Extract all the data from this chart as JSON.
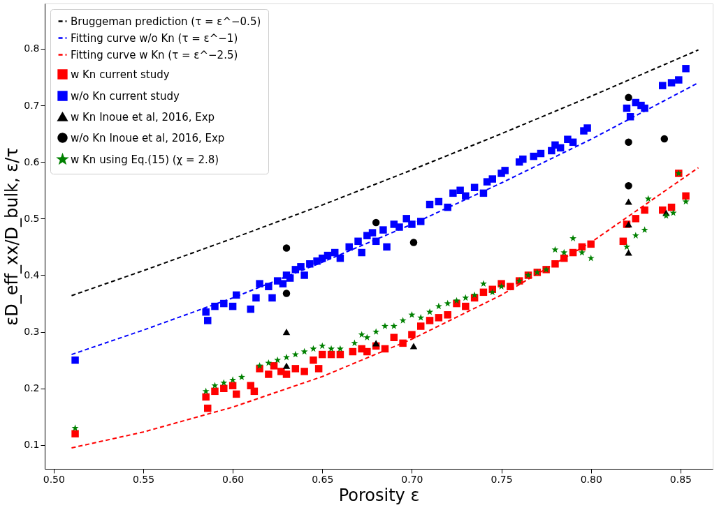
{
  "chart_data": {
    "type": "scatter",
    "xlabel": "Porosity ε",
    "ylabel": "εD_eff_xx/D_bulk,   ε/τ",
    "xlim": [
      0.495,
      0.868
    ],
    "ylim": [
      0.058,
      0.88
    ],
    "xticks": [
      {
        "value": 0.5,
        "label": "0.50"
      },
      0.55,
      {
        "value": 0.6,
        "label": "0.60"
      },
      0.65,
      {
        "value": 0.7,
        "label": "0.70"
      },
      0.75,
      {
        "value": 0.8,
        "label": "0.80"
      },
      0.85
    ],
    "yticks": [
      0.1,
      0.2,
      0.3,
      0.4,
      0.5,
      0.6,
      0.7,
      0.8
    ],
    "grid": false,
    "legend": "top left",
    "series": [
      {
        "name": "Bruggeman prediction (τ = ε^−0.5)",
        "type": "line",
        "line_style": "dashed",
        "marker": "none",
        "color": "#000000",
        "x": [
          0.51,
          0.55,
          0.6,
          0.65,
          0.7,
          0.75,
          0.8,
          0.86
        ],
        "values": [
          0.364,
          0.408,
          0.465,
          0.524,
          0.586,
          0.65,
          0.716,
          0.798
        ]
      },
      {
        "name": "Fitting curve w/o Kn (τ = ε^−1)",
        "type": "line",
        "line_style": "dashed",
        "marker": "none",
        "color": "#0000ff",
        "x": [
          0.51,
          0.55,
          0.6,
          0.65,
          0.7,
          0.75,
          0.8,
          0.86
        ],
        "values": [
          0.26,
          0.303,
          0.36,
          0.423,
          0.49,
          0.563,
          0.64,
          0.74
        ]
      },
      {
        "name": "Fitting curve w Kn (τ = ε^−2.5)",
        "type": "line",
        "line_style": "dashed",
        "marker": "none",
        "color": "#ff0000",
        "x": [
          0.51,
          0.55,
          0.6,
          0.65,
          0.7,
          0.75,
          0.8,
          0.86
        ],
        "values": [
          0.095,
          0.123,
          0.167,
          0.221,
          0.287,
          0.365,
          0.458,
          0.59
        ]
      },
      {
        "name": "w Kn current study",
        "marker": "square",
        "color": "#ff0000",
        "x": [
          0.512,
          0.585,
          0.586,
          0.59,
          0.595,
          0.6,
          0.602,
          0.61,
          0.612,
          0.615,
          0.62,
          0.623,
          0.627,
          0.63,
          0.635,
          0.64,
          0.645,
          0.648,
          0.65,
          0.655,
          0.66,
          0.667,
          0.672,
          0.675,
          0.68,
          0.685,
          0.69,
          0.695,
          0.7,
          0.705,
          0.71,
          0.715,
          0.72,
          0.725,
          0.73,
          0.735,
          0.74,
          0.745,
          0.75,
          0.755,
          0.76,
          0.765,
          0.77,
          0.775,
          0.78,
          0.785,
          0.79,
          0.795,
          0.8,
          0.818,
          0.82,
          0.825,
          0.83,
          0.84,
          0.845,
          0.849,
          0.853
        ],
        "values": [
          0.12,
          0.185,
          0.165,
          0.195,
          0.2,
          0.205,
          0.19,
          0.205,
          0.195,
          0.235,
          0.225,
          0.24,
          0.23,
          0.225,
          0.235,
          0.23,
          0.25,
          0.235,
          0.26,
          0.26,
          0.26,
          0.265,
          0.27,
          0.265,
          0.275,
          0.27,
          0.29,
          0.28,
          0.295,
          0.31,
          0.32,
          0.325,
          0.33,
          0.35,
          0.345,
          0.36,
          0.37,
          0.375,
          0.385,
          0.38,
          0.39,
          0.4,
          0.405,
          0.41,
          0.42,
          0.43,
          0.44,
          0.45,
          0.455,
          0.46,
          0.49,
          0.5,
          0.515,
          0.515,
          0.52,
          0.58,
          0.54
        ]
      },
      {
        "name": "w/o Kn current study",
        "marker": "square",
        "color": "#0000ff",
        "x": [
          0.512,
          0.585,
          0.586,
          0.59,
          0.595,
          0.6,
          0.602,
          0.61,
          0.613,
          0.615,
          0.62,
          0.622,
          0.625,
          0.628,
          0.63,
          0.632,
          0.635,
          0.638,
          0.64,
          0.643,
          0.647,
          0.65,
          0.653,
          0.657,
          0.66,
          0.665,
          0.67,
          0.672,
          0.675,
          0.678,
          0.68,
          0.684,
          0.686,
          0.69,
          0.693,
          0.697,
          0.7,
          0.705,
          0.71,
          0.715,
          0.72,
          0.723,
          0.727,
          0.73,
          0.735,
          0.74,
          0.742,
          0.745,
          0.75,
          0.752,
          0.76,
          0.762,
          0.768,
          0.772,
          0.778,
          0.78,
          0.783,
          0.787,
          0.79,
          0.796,
          0.798,
          0.82,
          0.822,
          0.825,
          0.828,
          0.83,
          0.84,
          0.845,
          0.849,
          0.853
        ],
        "values": [
          0.25,
          0.335,
          0.32,
          0.345,
          0.35,
          0.345,
          0.365,
          0.34,
          0.36,
          0.385,
          0.38,
          0.36,
          0.39,
          0.385,
          0.4,
          0.395,
          0.41,
          0.415,
          0.4,
          0.42,
          0.425,
          0.43,
          0.435,
          0.44,
          0.43,
          0.45,
          0.46,
          0.44,
          0.47,
          0.475,
          0.46,
          0.48,
          0.45,
          0.49,
          0.485,
          0.5,
          0.49,
          0.495,
          0.525,
          0.53,
          0.52,
          0.545,
          0.55,
          0.54,
          0.555,
          0.545,
          0.565,
          0.57,
          0.58,
          0.585,
          0.6,
          0.605,
          0.61,
          0.615,
          0.62,
          0.63,
          0.625,
          0.64,
          0.635,
          0.655,
          0.66,
          0.695,
          0.68,
          0.705,
          0.7,
          0.695,
          0.735,
          0.74,
          0.745,
          0.765
        ]
      },
      {
        "name": "w Kn Inoue et al, 2016, Exp",
        "marker": "triangle",
        "color": "#000000",
        "x": [
          0.63,
          0.63,
          0.68,
          0.701,
          0.821,
          0.821,
          0.821,
          0.842
        ],
        "values": [
          0.3,
          0.24,
          0.28,
          0.275,
          0.53,
          0.49,
          0.44,
          0.51
        ]
      },
      {
        "name": "w/o Kn Inoue et al, 2016, Exp",
        "marker": "circle",
        "color": "#000000",
        "x": [
          0.63,
          0.63,
          0.68,
          0.701,
          0.821,
          0.821,
          0.821,
          0.841
        ],
        "values": [
          0.448,
          0.368,
          0.493,
          0.458,
          0.714,
          0.635,
          0.558,
          0.641
        ]
      },
      {
        "name": "w Kn using Eq.(15) (χ = 2.8)",
        "marker": "star",
        "color": "#008000",
        "x": [
          0.512,
          0.585,
          0.59,
          0.595,
          0.6,
          0.605,
          0.615,
          0.62,
          0.625,
          0.63,
          0.635,
          0.64,
          0.645,
          0.65,
          0.655,
          0.66,
          0.668,
          0.672,
          0.675,
          0.68,
          0.685,
          0.69,
          0.695,
          0.7,
          0.705,
          0.71,
          0.715,
          0.72,
          0.725,
          0.73,
          0.735,
          0.74,
          0.745,
          0.75,
          0.76,
          0.765,
          0.77,
          0.775,
          0.78,
          0.785,
          0.79,
          0.795,
          0.8,
          0.82,
          0.825,
          0.83,
          0.832,
          0.842,
          0.846,
          0.849,
          0.853
        ],
        "values": [
          0.13,
          0.195,
          0.205,
          0.21,
          0.215,
          0.22,
          0.24,
          0.245,
          0.25,
          0.255,
          0.26,
          0.265,
          0.27,
          0.275,
          0.27,
          0.27,
          0.28,
          0.295,
          0.29,
          0.3,
          0.31,
          0.31,
          0.32,
          0.33,
          0.325,
          0.335,
          0.345,
          0.35,
          0.355,
          0.36,
          0.365,
          0.385,
          0.37,
          0.38,
          0.39,
          0.4,
          0.405,
          0.41,
          0.445,
          0.44,
          0.465,
          0.44,
          0.43,
          0.45,
          0.47,
          0.48,
          0.535,
          0.505,
          0.51,
          0.58,
          0.53
        ]
      }
    ]
  }
}
